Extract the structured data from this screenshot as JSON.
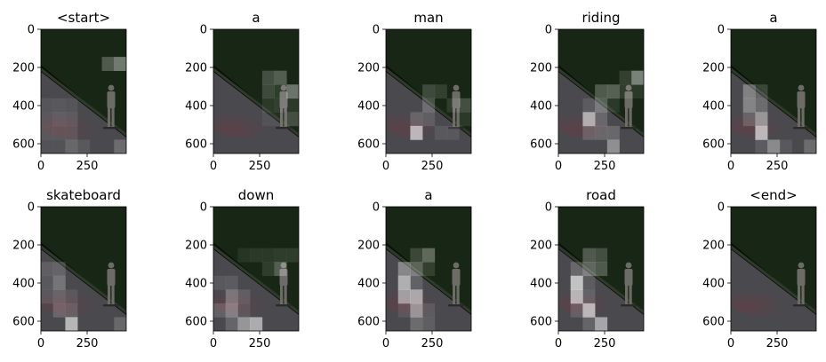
{
  "figure": {
    "panels": [
      {
        "title": "<start>",
        "attn": [
          [
            0,
            0,
            0,
            0,
            0,
            0,
            0
          ],
          [
            0,
            0,
            0,
            0,
            0,
            0,
            0
          ],
          [
            0,
            0,
            0,
            0,
            0,
            0.28,
            0.45
          ],
          [
            0,
            0,
            0,
            0,
            0,
            0,
            0
          ],
          [
            0,
            0,
            0,
            0,
            0,
            0,
            0
          ],
          [
            0.08,
            0.1,
            0.08,
            0,
            0,
            0,
            0
          ],
          [
            0.1,
            0.14,
            0.12,
            0,
            0,
            0,
            0
          ],
          [
            0.1,
            0.1,
            0.1,
            0,
            0,
            0,
            0
          ],
          [
            0.06,
            0.06,
            0.2,
            0.1,
            0,
            0,
            0.22
          ]
        ]
      },
      {
        "title": "a",
        "attn": [
          [
            0,
            0,
            0,
            0,
            0,
            0,
            0
          ],
          [
            0,
            0,
            0,
            0,
            0,
            0,
            0
          ],
          [
            0,
            0,
            0,
            0,
            0,
            0,
            0
          ],
          [
            0,
            0,
            0,
            0,
            0.22,
            0.3,
            0
          ],
          [
            0,
            0,
            0,
            0,
            0.2,
            0.12,
            0.42
          ],
          [
            0,
            0,
            0,
            0,
            0.1,
            0.14,
            0.1
          ],
          [
            0,
            0,
            0,
            0,
            0.06,
            0.06,
            0.22
          ],
          [
            0,
            0,
            0,
            0,
            0,
            0,
            0
          ],
          [
            0,
            0,
            0,
            0,
            0,
            0,
            0
          ]
        ]
      },
      {
        "title": "man",
        "attn": [
          [
            0,
            0,
            0,
            0,
            0,
            0,
            0
          ],
          [
            0,
            0,
            0,
            0,
            0,
            0,
            0
          ],
          [
            0,
            0,
            0,
            0,
            0,
            0,
            0
          ],
          [
            0,
            0,
            0,
            0,
            0,
            0,
            0
          ],
          [
            0,
            0,
            0,
            0.2,
            0.14,
            0,
            0
          ],
          [
            0,
            0,
            0,
            0.24,
            0,
            0.12,
            0.22
          ],
          [
            0,
            0,
            0.18,
            0.14,
            0,
            0,
            0.1
          ],
          [
            0,
            0,
            0.72,
            0,
            0.1,
            0.1,
            0
          ],
          [
            0,
            0,
            0,
            0,
            0,
            0,
            0
          ]
        ]
      },
      {
        "title": "riding",
        "attn": [
          [
            0,
            0,
            0,
            0,
            0,
            0,
            0
          ],
          [
            0,
            0,
            0,
            0,
            0,
            0,
            0
          ],
          [
            0,
            0,
            0,
            0,
            0,
            0,
            0
          ],
          [
            0,
            0,
            0,
            0,
            0,
            0.14,
            0.5
          ],
          [
            0,
            0,
            0,
            0.28,
            0.32,
            0.12,
            0.1
          ],
          [
            0,
            0,
            0.12,
            0.32,
            0.1,
            0,
            0
          ],
          [
            0,
            0,
            0.66,
            0.2,
            0,
            0,
            0
          ],
          [
            0,
            0,
            0.18,
            0.2,
            0.2,
            0,
            0
          ],
          [
            0,
            0,
            0,
            0,
            0.45,
            0,
            0
          ]
        ]
      },
      {
        "title": "a",
        "attn": [
          [
            0,
            0,
            0,
            0,
            0,
            0,
            0
          ],
          [
            0,
            0,
            0,
            0,
            0,
            0,
            0
          ],
          [
            0,
            0,
            0,
            0,
            0,
            0,
            0
          ],
          [
            0,
            0,
            0,
            0,
            0,
            0,
            0
          ],
          [
            0,
            0.36,
            0.18,
            0,
            0,
            0,
            0
          ],
          [
            0,
            0.38,
            0.22,
            0,
            0,
            0,
            0
          ],
          [
            0,
            0.18,
            0.5,
            0,
            0,
            0,
            0
          ],
          [
            0,
            0,
            0.72,
            0,
            0,
            0,
            0
          ],
          [
            0,
            0,
            0.12,
            0.42,
            0.1,
            0,
            0.22
          ]
        ]
      },
      {
        "title": "skateboard",
        "attn": [
          [
            0,
            0,
            0,
            0,
            0,
            0,
            0
          ],
          [
            0,
            0,
            0,
            0,
            0,
            0,
            0
          ],
          [
            0,
            0,
            0,
            0,
            0,
            0,
            0
          ],
          [
            0,
            0,
            0,
            0,
            0,
            0,
            0
          ],
          [
            0.14,
            0.18,
            0,
            0,
            0,
            0,
            0
          ],
          [
            0.1,
            0.28,
            0,
            0,
            0,
            0,
            0
          ],
          [
            0.1,
            0.18,
            0.1,
            0,
            0,
            0,
            0
          ],
          [
            0,
            0.2,
            0.16,
            0,
            0,
            0,
            0
          ],
          [
            0,
            0,
            0.7,
            0,
            0,
            0,
            0.2
          ]
        ]
      },
      {
        "title": "down",
        "attn": [
          [
            0,
            0,
            0,
            0,
            0,
            0,
            0
          ],
          [
            0,
            0,
            0,
            0,
            0,
            0,
            0
          ],
          [
            0,
            0,
            0,
            0,
            0,
            0,
            0
          ],
          [
            0,
            0,
            0.08,
            0.1,
            0.1,
            0.12,
            0.12
          ],
          [
            0,
            0,
            0,
            0,
            0.12,
            0.3,
            0
          ],
          [
            0.1,
            0.12,
            0,
            0,
            0,
            0,
            0
          ],
          [
            0,
            0.3,
            0.14,
            0,
            0,
            0,
            0
          ],
          [
            0.16,
            0.36,
            0.1,
            0,
            0,
            0,
            0
          ],
          [
            0,
            0.18,
            0.5,
            0.64,
            0,
            0,
            0
          ]
        ]
      },
      {
        "title": "a",
        "attn": [
          [
            0,
            0,
            0,
            0,
            0,
            0,
            0
          ],
          [
            0,
            0,
            0,
            0,
            0,
            0,
            0
          ],
          [
            0,
            0,
            0,
            0,
            0,
            0,
            0
          ],
          [
            0,
            0,
            0.18,
            0.36,
            0,
            0,
            0
          ],
          [
            0,
            0.4,
            0.34,
            0.14,
            0,
            0,
            0
          ],
          [
            0,
            0.66,
            0.16,
            0,
            0,
            0,
            0
          ],
          [
            0,
            0.56,
            0.62,
            0,
            0,
            0,
            0
          ],
          [
            0,
            0.1,
            0.5,
            0.12,
            0,
            0,
            0
          ],
          [
            0,
            0,
            0.22,
            0.14,
            0,
            0,
            0
          ]
        ]
      },
      {
        "title": "road",
        "attn": [
          [
            0,
            0,
            0,
            0,
            0,
            0,
            0
          ],
          [
            0,
            0,
            0,
            0,
            0,
            0,
            0
          ],
          [
            0,
            0,
            0,
            0,
            0,
            0,
            0
          ],
          [
            0,
            0,
            0.28,
            0.22,
            0,
            0,
            0
          ],
          [
            0,
            0.2,
            0.36,
            0.28,
            0,
            0,
            0
          ],
          [
            0,
            0.78,
            0.12,
            0,
            0,
            0,
            0
          ],
          [
            0,
            0.7,
            0.16,
            0,
            0,
            0,
            0
          ],
          [
            0,
            0.16,
            0.72,
            0,
            0,
            0,
            0
          ],
          [
            0,
            0,
            0.18,
            0.6,
            0,
            0,
            0
          ]
        ]
      },
      {
        "title": "<end>",
        "attn": [
          [
            0,
            0,
            0,
            0,
            0,
            0,
            0
          ],
          [
            0,
            0,
            0,
            0,
            0,
            0,
            0
          ],
          [
            0,
            0,
            0,
            0,
            0,
            0,
            0
          ],
          [
            0,
            0,
            0,
            0,
            0,
            0,
            0
          ],
          [
            0,
            0,
            0,
            0,
            0,
            0,
            0
          ],
          [
            0,
            0,
            0,
            0,
            0,
            0,
            0
          ],
          [
            0,
            0,
            0,
            0,
            0,
            0,
            0
          ],
          [
            0,
            0,
            0,
            0,
            0,
            0,
            0
          ],
          [
            0,
            0,
            0,
            0,
            0,
            0,
            0
          ]
        ]
      }
    ],
    "y_ticks": [
      "0",
      "200",
      "400",
      "600"
    ],
    "x_ticks": [
      "0",
      "250"
    ],
    "colors": {
      "photo_dark": "#0b0f0b",
      "foliage": "#1a2a16",
      "road": "#4a4a4e",
      "road_edge": "#2f3a2a",
      "road_marks": "#6a3a44",
      "person": "#6c6b66",
      "attention": "#ffffff"
    }
  }
}
